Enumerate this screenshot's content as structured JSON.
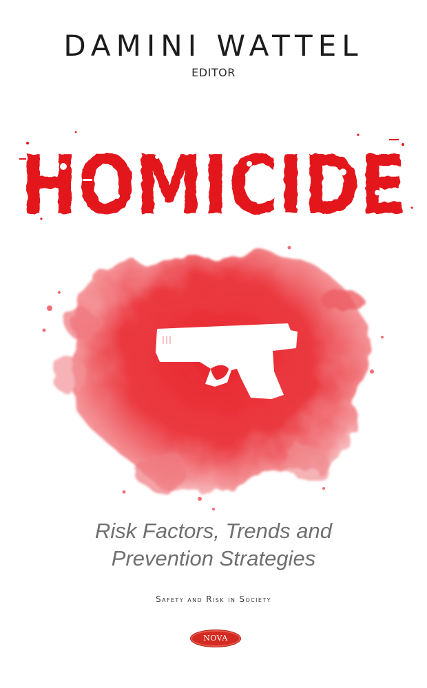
{
  "cover": {
    "author": "DAMINI WATTEL",
    "role": "EDITOR",
    "title": "HOMICIDE",
    "subtitle_line1": "Risk Factors, Trends and",
    "subtitle_line2": "Prevention Strategies",
    "series": "Safety and Risk in Society",
    "publisher": "NOVA"
  },
  "colors": {
    "title_red": "#e3161d",
    "splash_red": "#e8262e",
    "subtitle_gray": "#6f6f6f",
    "publisher_red": "#d42a22"
  },
  "icons": [
    "pistol-icon"
  ]
}
